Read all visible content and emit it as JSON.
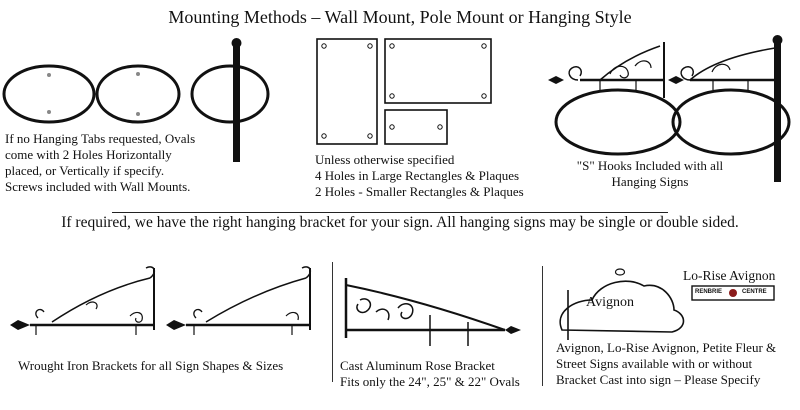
{
  "title": "Mounting Methods – Wall Mount, Pole Mount or Hanging Style",
  "ovals_caption": [
    "If no Hanging Tabs requested, Ovals",
    "come with 2 Holes Horizontally",
    "placed, or Vertically if specify.",
    "Screws included with Wall Mounts."
  ],
  "rect_caption": [
    "Unless otherwise specified",
    "4 Holes in Large Rectangles & Plaques",
    "2 Holes - Smaller Rectangles & Plaques"
  ],
  "hooks_caption": [
    "\"S\" Hooks Included with all",
    "Hanging Signs"
  ],
  "middle_text": "If required, we have the right hanging bracket for your sign. All hanging signs may be single or double sided.",
  "wrought_caption": "Wrought Iron Brackets for all Sign Shapes & Sizes",
  "rose_caption": [
    "Cast Aluminum Rose Bracket",
    "Fits only the 24\", 25\" & 22\" Ovals"
  ],
  "avignon_sign_label": "Avignon",
  "lo_rise_title": "Lo-Rise Avignon",
  "lo_rise_sign_left": "RENBRIE",
  "lo_rise_sign_right": "CENTRE",
  "avignon_caption": [
    "Avignon, Lo-Rise Avignon, Petite Fleur &",
    "Street Signs available with or without",
    "Bracket Cast into sign – Please Specify"
  ]
}
